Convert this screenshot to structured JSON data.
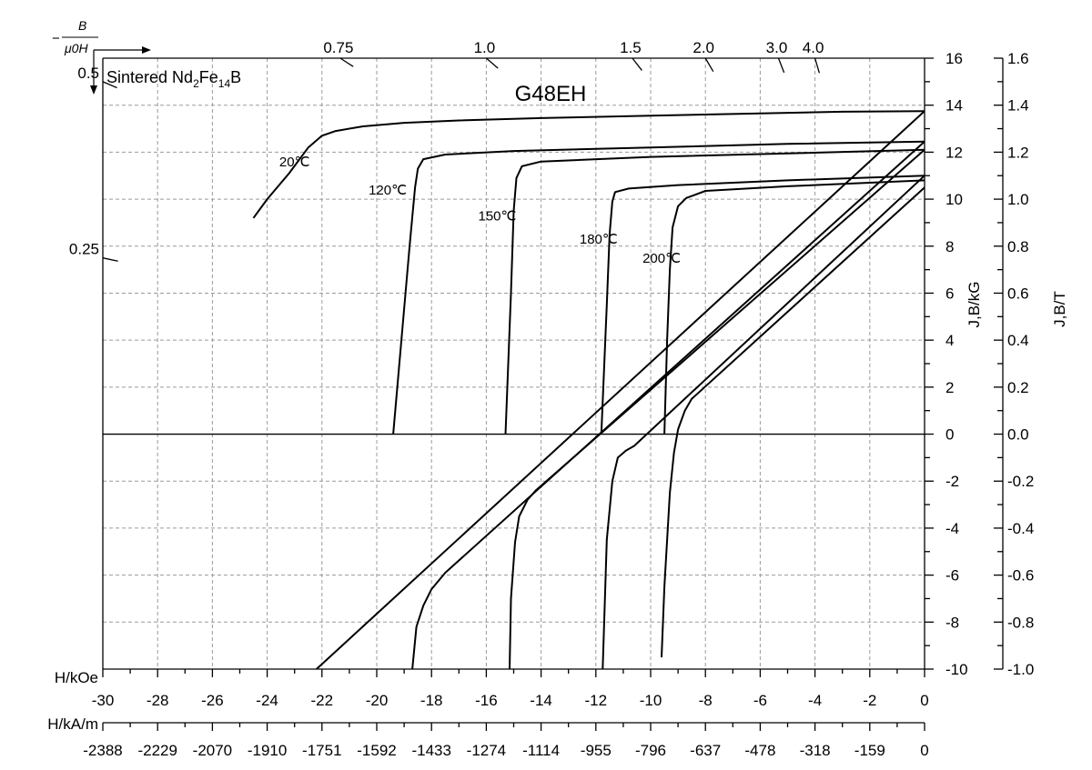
{
  "chart_data": {
    "type": "line",
    "title": "G48EH",
    "material": {
      "prefix": "Sintered Nd",
      "sub1": "2",
      "mid": "Fe",
      "sub2": "14",
      "suffix": "B"
    },
    "permeance_label": {
      "minus": "−",
      "numerator": "B",
      "denominator": "μ0H"
    },
    "permeance_lines": [
      {
        "label": "0.25",
        "slope": 0.25
      },
      {
        "label": "0.5",
        "slope": 0.5
      },
      {
        "label": "0.75",
        "slope": 0.75
      },
      {
        "label": "1.0",
        "slope": 1.0
      },
      {
        "label": "1.5",
        "slope": 1.5
      },
      {
        "label": "2.0",
        "slope": 2.0
      },
      {
        "label": "3.0",
        "slope": 3.0
      },
      {
        "label": "4.0",
        "slope": 4.0
      }
    ],
    "x_axis_koe": {
      "label": "H/kOe",
      "range": [
        -30,
        0
      ],
      "ticks": [
        "-30",
        "-28",
        "-26",
        "-24",
        "-22",
        "-20",
        "-18",
        "-16",
        "-14",
        "-12",
        "-10",
        "-8",
        "-6",
        "-4",
        "-2",
        "0"
      ]
    },
    "x_axis_kam": {
      "label": "H/kA/m",
      "ticks": [
        "-2388",
        "-2229",
        "-2070",
        "-1910",
        "-1751",
        "-1592",
        "-1433",
        "-1274",
        "-1114",
        "-955",
        "-796",
        "-637",
        "-478",
        "-318",
        "-159",
        "0"
      ]
    },
    "y_axis_kg": {
      "label": "J,B/kG",
      "range": [
        -10,
        16
      ],
      "ticks": [
        "-10",
        "-8",
        "-6",
        "-4",
        "-2",
        "0",
        "2",
        "4",
        "6",
        "8",
        "10",
        "12",
        "14",
        "16"
      ]
    },
    "y_axis_t": {
      "label": "J,B/T",
      "range": [
        -1.0,
        1.6
      ],
      "ticks": [
        "-1.0",
        "-0.8",
        "-0.6",
        "-0.4",
        "-0.2",
        "0.0",
        "0.2",
        "0.4",
        "0.6",
        "0.8",
        "1.0",
        "1.2",
        "1.4",
        "1.6"
      ]
    },
    "grid": true,
    "series": [
      {
        "name": "20℃",
        "J": [
          [
            0,
            13.75
          ],
          [
            -3,
            13.72
          ],
          [
            -6,
            13.65
          ],
          [
            -10,
            13.55
          ],
          [
            -14,
            13.45
          ],
          [
            -17,
            13.35
          ],
          [
            -19,
            13.25
          ],
          [
            -20.5,
            13.1
          ],
          [
            -21.5,
            12.9
          ],
          [
            -22,
            12.7
          ],
          [
            -22.5,
            12.2
          ],
          [
            -23.2,
            11.1
          ],
          [
            -24,
            10.0
          ],
          [
            -24.5,
            9.2
          ]
        ],
        "B": [
          [
            0,
            13.75
          ],
          [
            -22.2,
            -10
          ]
        ]
      },
      {
        "name": "120℃",
        "J": [
          [
            0,
            12.45
          ],
          [
            -5,
            12.35
          ],
          [
            -10,
            12.2
          ],
          [
            -15,
            12.05
          ],
          [
            -17.5,
            11.9
          ],
          [
            -18.3,
            11.7
          ],
          [
            -18.5,
            11.3
          ],
          [
            -18.6,
            10.5
          ],
          [
            -18.8,
            8.0
          ],
          [
            -19.1,
            4.0
          ],
          [
            -19.4,
            0.0
          ]
        ],
        "B": [
          [
            0,
            12.45
          ],
          [
            -17.5,
            -5.9
          ],
          [
            -18.0,
            -6.6
          ],
          [
            -18.3,
            -7.3
          ],
          [
            -18.55,
            -8.2
          ],
          [
            -18.7,
            -10
          ]
        ]
      },
      {
        "name": "150℃",
        "J": [
          [
            0,
            12.1
          ],
          [
            -5,
            11.95
          ],
          [
            -10,
            11.8
          ],
          [
            -14,
            11.6
          ],
          [
            -14.7,
            11.4
          ],
          [
            -14.9,
            10.9
          ],
          [
            -15.0,
            9.5
          ],
          [
            -15.1,
            6.0
          ],
          [
            -15.3,
            0.0
          ]
        ],
        "B": [
          [
            0,
            12.1
          ],
          [
            -14.2,
            -2.4
          ],
          [
            -14.5,
            -2.8
          ],
          [
            -14.8,
            -3.5
          ],
          [
            -14.95,
            -4.6
          ],
          [
            -15.1,
            -7.0
          ],
          [
            -15.15,
            -10
          ]
        ]
      },
      {
        "name": "180℃",
        "J": [
          [
            0,
            11.0
          ],
          [
            -5,
            10.8
          ],
          [
            -9,
            10.6
          ],
          [
            -10.8,
            10.45
          ],
          [
            -11.3,
            10.3
          ],
          [
            -11.4,
            9.9
          ],
          [
            -11.5,
            8.5
          ],
          [
            -11.6,
            5.5
          ],
          [
            -11.8,
            0.0
          ]
        ],
        "B": [
          [
            0,
            11.0
          ],
          [
            -10.6,
            -0.5
          ],
          [
            -10.9,
            -0.7
          ],
          [
            -11.2,
            -1.0
          ],
          [
            -11.4,
            -2.0
          ],
          [
            -11.6,
            -4.5
          ],
          [
            -11.75,
            -10
          ]
        ]
      },
      {
        "name": "200℃",
        "J": [
          [
            0,
            10.8
          ],
          [
            -5,
            10.55
          ],
          [
            -8,
            10.35
          ],
          [
            -8.7,
            10.05
          ],
          [
            -9.0,
            9.7
          ],
          [
            -9.2,
            8.8
          ],
          [
            -9.3,
            7.0
          ],
          [
            -9.4,
            4.0
          ],
          [
            -9.5,
            0.0
          ]
        ],
        "B": [
          [
            0,
            10.5
          ],
          [
            -8.5,
            1.5
          ],
          [
            -8.75,
            1.0
          ],
          [
            -9.0,
            0.2
          ],
          [
            -9.15,
            -0.8
          ],
          [
            -9.3,
            -2.5
          ],
          [
            -9.5,
            -6.5
          ],
          [
            -9.6,
            -9.5
          ]
        ]
      }
    ],
    "curve_labels": [
      {
        "text": "20℃",
        "x": -23.0,
        "y": 11.4
      },
      {
        "text": "120℃",
        "x": -19.6,
        "y": 10.2
      },
      {
        "text": "150℃",
        "x": -15.6,
        "y": 9.1
      },
      {
        "text": "180℃",
        "x": -11.9,
        "y": 8.1
      },
      {
        "text": "200℃",
        "x": -9.6,
        "y": 7.3
      }
    ]
  }
}
